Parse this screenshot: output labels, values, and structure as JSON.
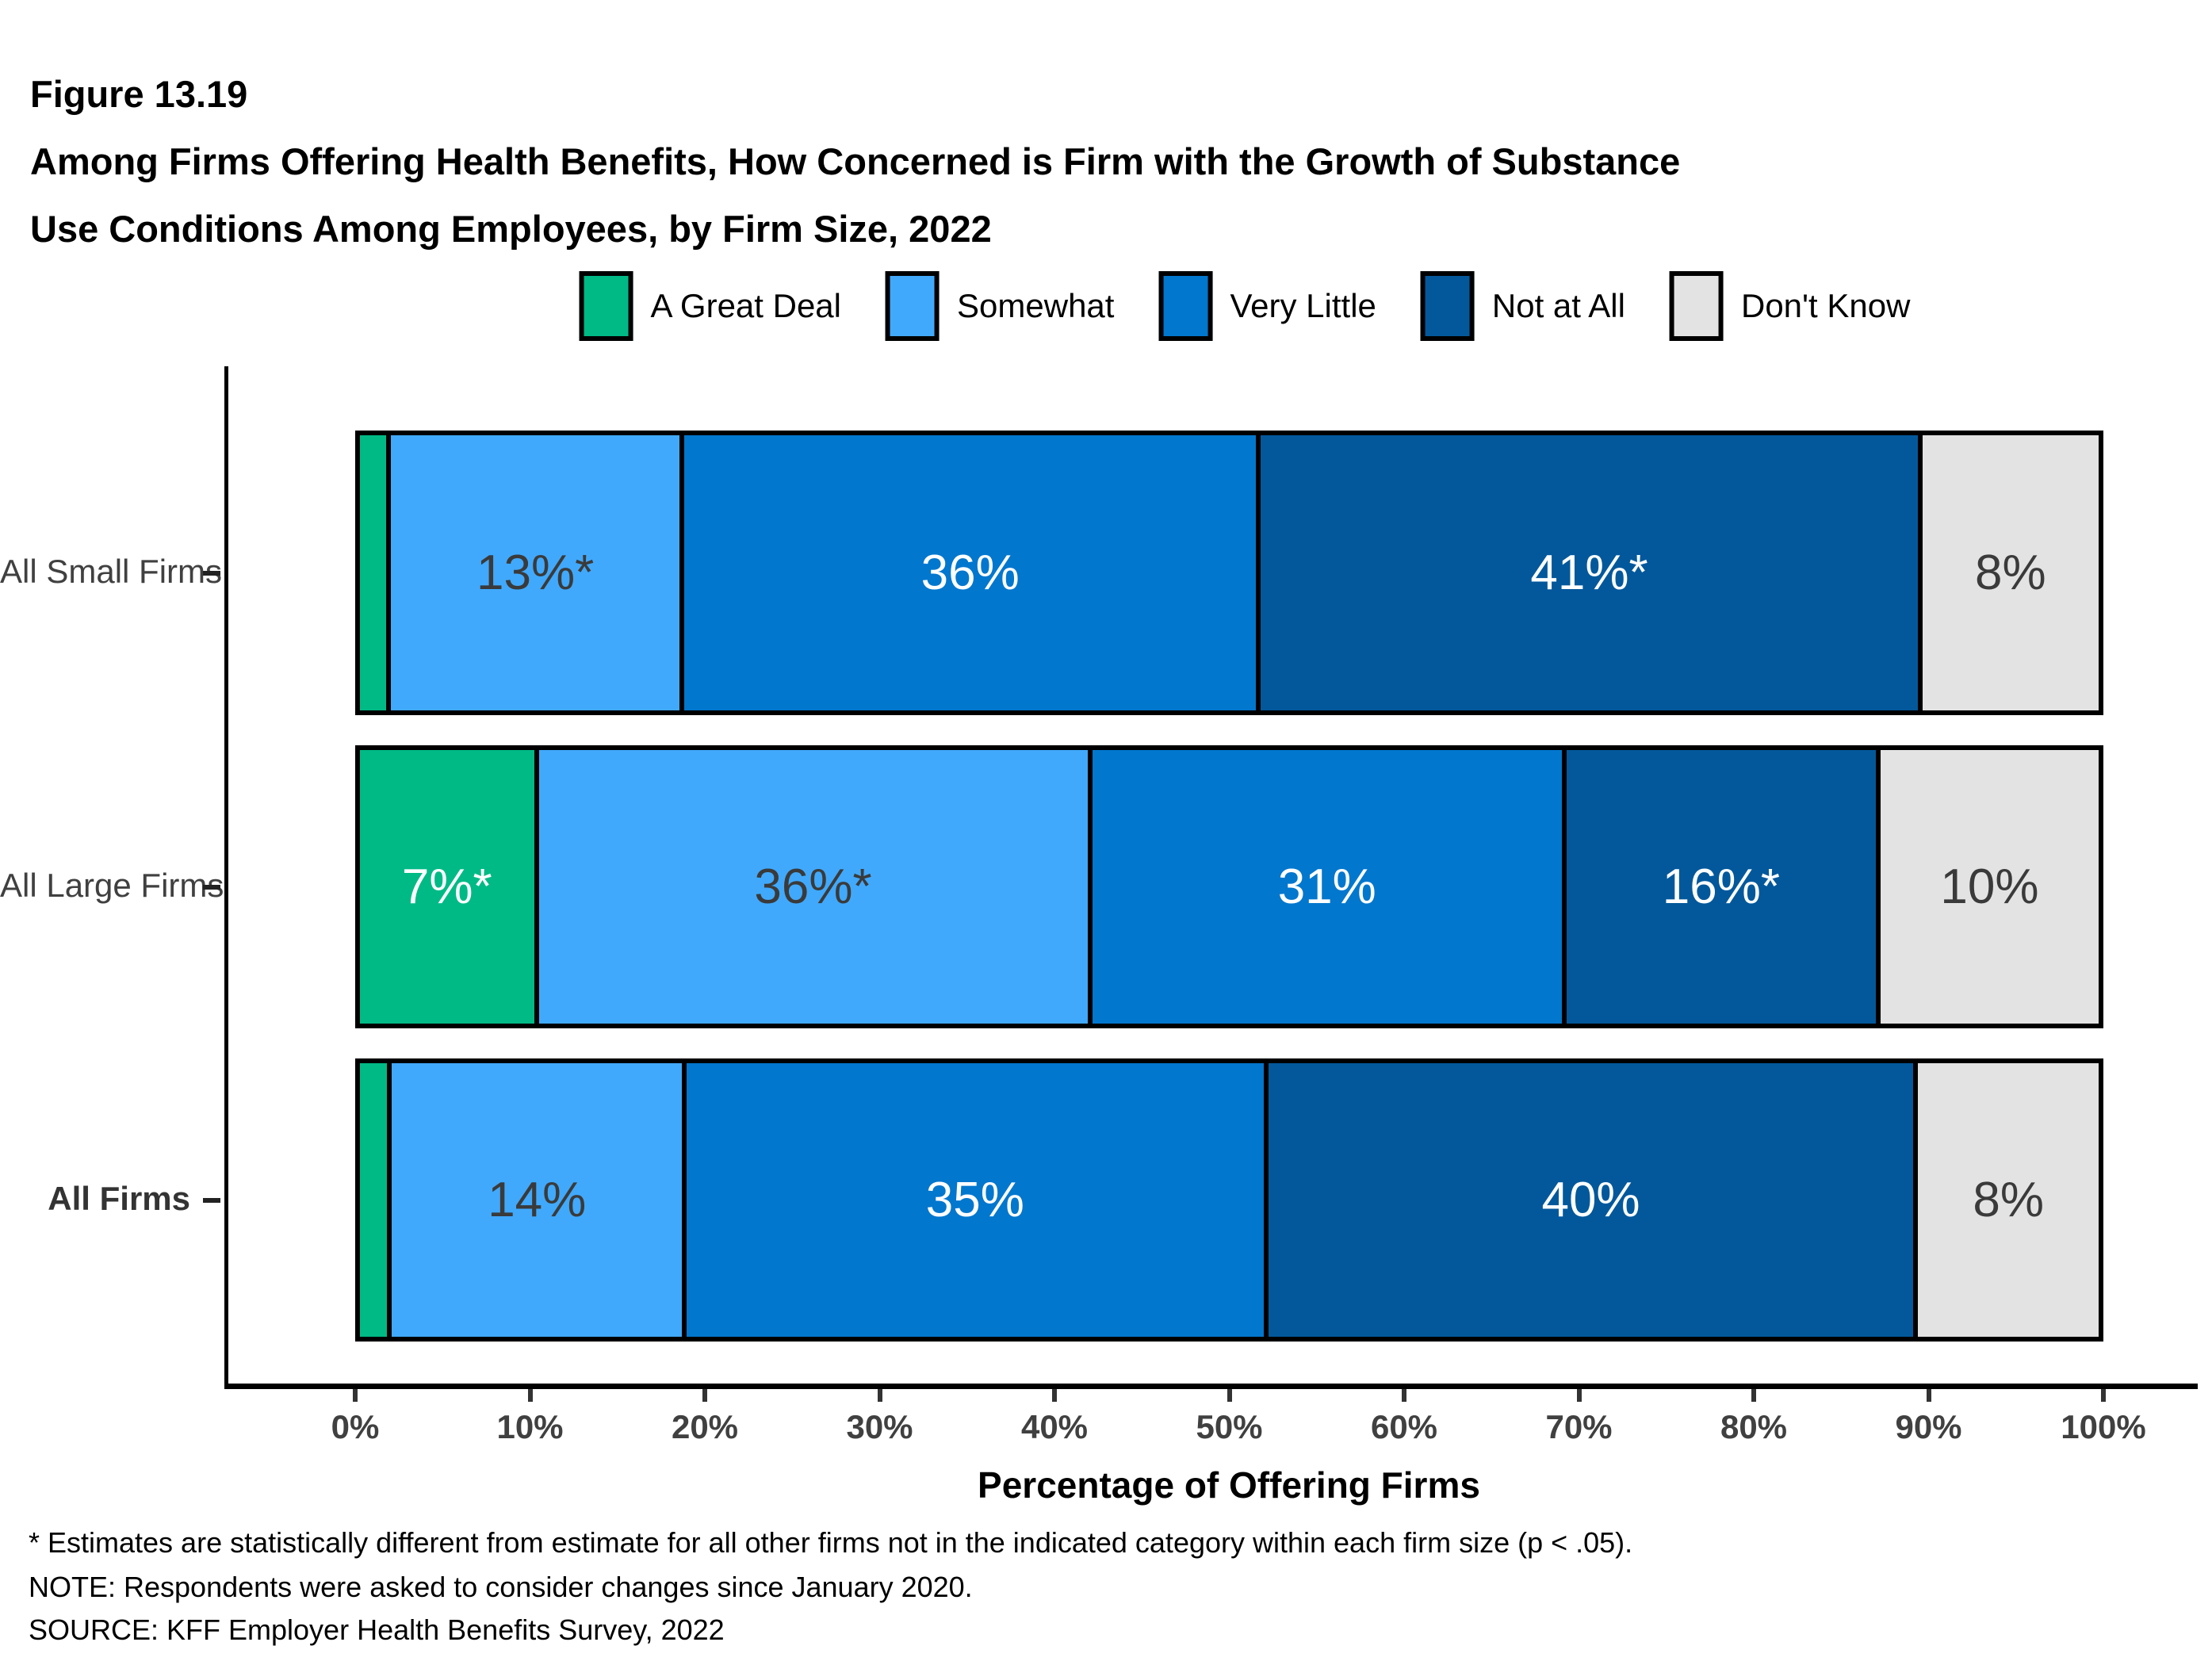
{
  "header": {
    "figure_label": "Figure 13.19",
    "title_lines": [
      "Among Firms Offering Health Benefits, How Concerned is Firm with the Growth of Substance",
      "Use Conditions Among Employees, by Firm Size, 2022"
    ]
  },
  "chart_data": {
    "type": "bar",
    "orientation": "horizontal",
    "stacked": true,
    "grid": false,
    "legend_position": "top",
    "categories": [
      "All Small Firms",
      "All Large Firms",
      "All Firms"
    ],
    "bold_categories": [
      "All Firms"
    ],
    "series": [
      {
        "name": "A Great Deal",
        "color": "#00ba86",
        "label_color": "#ffffff",
        "values": [
          2,
          7,
          2
        ],
        "labels": [
          "",
          "7%*",
          ""
        ]
      },
      {
        "name": "Somewhat",
        "color": "#41a9fb",
        "label_color": "#3a3a3a",
        "values": [
          13,
          36,
          14
        ],
        "labels": [
          "13%*",
          "36%*",
          "14%"
        ]
      },
      {
        "name": "Very Little",
        "color": "#0277ce",
        "label_color": "#ffffff",
        "values": [
          36,
          31,
          35
        ],
        "labels": [
          "36%",
          "31%",
          "35%"
        ]
      },
      {
        "name": "Not at All",
        "color": "#03589b",
        "label_color": "#ffffff",
        "values": [
          41,
          16,
          40
        ],
        "labels": [
          "41%*",
          "16%*",
          "40%"
        ]
      },
      {
        "name": "Don't Know",
        "color": "#e3e3e3",
        "label_color": "#3a3a3a",
        "values": [
          8,
          10,
          8
        ],
        "labels": [
          "8%",
          "10%",
          "8%"
        ]
      }
    ],
    "xlabel": "Percentage of Offering Firms",
    "xlim": [
      0,
      100
    ],
    "x_tick_labels": [
      "0%",
      "10%",
      "20%",
      "30%",
      "40%",
      "50%",
      "60%",
      "70%",
      "80%",
      "90%",
      "100%"
    ]
  },
  "footnotes": [
    "* Estimates are statistically different from estimate for all other firms not in the indicated category within each firm size (p < .05).",
    "NOTE: Respondents were asked to consider changes since January 2020.",
    "SOURCE: KFF Employer Health Benefits Survey, 2022"
  ]
}
